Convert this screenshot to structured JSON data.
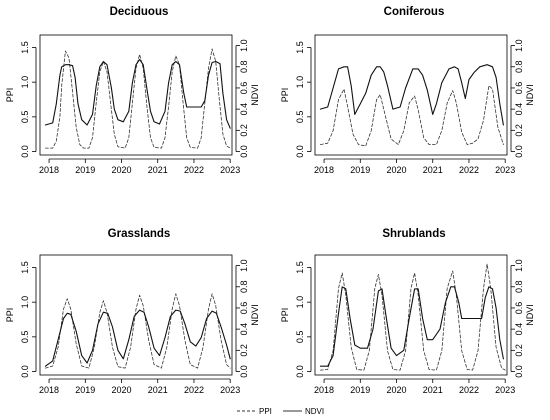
{
  "legend": {
    "ppi_label": "PPI",
    "ndvi_label": "NDVI"
  },
  "chart_data": [
    {
      "type": "line",
      "title": "Deciduous",
      "ylabel_left": "PPI",
      "ylabel_right": "NDVI",
      "xlim": [
        2017.75,
        2023.05
      ],
      "ylim_left": [
        -0.05,
        1.68
      ],
      "ylim_right": [
        -0.033,
        1.1
      ],
      "x_ticks": [
        2018,
        2019,
        2020,
        2021,
        2022,
        2023
      ],
      "y_ticks_left": [
        "0.0",
        "0.5",
        "1.0",
        "1.5"
      ],
      "y_ticks_right": [
        "0.0",
        "0.2",
        "0.4",
        "0.6",
        "0.8",
        "1.0"
      ],
      "series": [
        {
          "name": "PPI",
          "axis": "left",
          "style": "dashed",
          "x": [
            2017.9,
            2018.1,
            2018.2,
            2018.3,
            2018.35,
            2018.45,
            2018.55,
            2018.65,
            2018.75,
            2018.85,
            2018.95,
            2019.1,
            2019.2,
            2019.3,
            2019.4,
            2019.5,
            2019.6,
            2019.7,
            2019.8,
            2019.9,
            2020.1,
            2020.2,
            2020.3,
            2020.4,
            2020.5,
            2020.6,
            2020.7,
            2020.8,
            2020.9,
            2021.1,
            2021.2,
            2021.3,
            2021.4,
            2021.5,
            2021.6,
            2021.7,
            2021.8,
            2021.9,
            2022.1,
            2022.2,
            2022.3,
            2022.4,
            2022.5,
            2022.6,
            2022.7,
            2022.8,
            2022.9,
            2023.0
          ],
          "y": [
            0.05,
            0.05,
            0.15,
            0.5,
            0.95,
            1.45,
            1.35,
            0.85,
            0.35,
            0.1,
            0.05,
            0.05,
            0.2,
            0.7,
            1.15,
            1.3,
            1.15,
            0.7,
            0.25,
            0.07,
            0.05,
            0.2,
            0.7,
            1.2,
            1.4,
            1.2,
            0.65,
            0.2,
            0.06,
            0.05,
            0.2,
            0.65,
            1.15,
            1.38,
            1.25,
            0.7,
            0.2,
            0.06,
            0.05,
            0.2,
            0.7,
            1.2,
            1.48,
            1.3,
            0.75,
            0.25,
            0.08,
            0.05
          ]
        },
        {
          "name": "NDVI",
          "axis": "right",
          "style": "solid",
          "x": [
            2017.9,
            2018.1,
            2018.2,
            2018.3,
            2018.35,
            2018.45,
            2018.55,
            2018.65,
            2018.72,
            2018.8,
            2018.9,
            2019.05,
            2019.2,
            2019.3,
            2019.4,
            2019.5,
            2019.6,
            2019.72,
            2019.8,
            2019.9,
            2020.05,
            2020.2,
            2020.3,
            2020.4,
            2020.5,
            2020.6,
            2020.72,
            2020.8,
            2020.9,
            2021.05,
            2021.2,
            2021.3,
            2021.4,
            2021.5,
            2021.6,
            2021.72,
            2021.8,
            2021.9,
            2022.05,
            2022.2,
            2022.3,
            2022.4,
            2022.5,
            2022.6,
            2022.72,
            2022.8,
            2022.9,
            2023.0
          ],
          "y": [
            0.25,
            0.27,
            0.45,
            0.72,
            0.8,
            0.82,
            0.82,
            0.81,
            0.7,
            0.45,
            0.3,
            0.25,
            0.35,
            0.62,
            0.8,
            0.85,
            0.82,
            0.6,
            0.4,
            0.3,
            0.28,
            0.38,
            0.65,
            0.82,
            0.87,
            0.82,
            0.55,
            0.38,
            0.28,
            0.26,
            0.38,
            0.65,
            0.82,
            0.85,
            0.82,
            0.55,
            0.42,
            0.42,
            0.42,
            0.42,
            0.48,
            0.72,
            0.84,
            0.85,
            0.83,
            0.55,
            0.3,
            0.22
          ]
        }
      ]
    },
    {
      "type": "line",
      "title": "Coniferous",
      "ylabel_left": "PPI",
      "ylabel_right": "NDVI",
      "xlim": [
        2017.75,
        2023.05
      ],
      "ylim_left": [
        -0.05,
        1.68
      ],
      "ylim_right": [
        -0.033,
        1.1
      ],
      "x_ticks": [
        2018,
        2019,
        2020,
        2021,
        2022,
        2023
      ],
      "y_ticks_left": [
        "0.0",
        "0.5",
        "1.0",
        "1.5"
      ],
      "y_ticks_right": [
        "0.0",
        "0.2",
        "0.4",
        "0.6",
        "0.8",
        "1.0"
      ],
      "series": [
        {
          "name": "PPI",
          "axis": "left",
          "style": "dashed",
          "x": [
            2017.9,
            2018.1,
            2018.25,
            2018.4,
            2018.55,
            2018.65,
            2018.8,
            2018.95,
            2019.15,
            2019.3,
            2019.45,
            2019.55,
            2019.7,
            2019.85,
            2020.05,
            2020.2,
            2020.35,
            2020.5,
            2020.6,
            2020.75,
            2020.9,
            2021.1,
            2021.25,
            2021.4,
            2021.55,
            2021.65,
            2021.8,
            2021.95,
            2022.1,
            2022.25,
            2022.4,
            2022.55,
            2022.65,
            2022.8,
            2022.95
          ],
          "y": [
            0.1,
            0.12,
            0.3,
            0.75,
            0.9,
            0.65,
            0.25,
            0.1,
            0.08,
            0.3,
            0.75,
            0.82,
            0.5,
            0.18,
            0.1,
            0.3,
            0.7,
            0.8,
            0.6,
            0.2,
            0.1,
            0.1,
            0.3,
            0.7,
            0.88,
            0.7,
            0.28,
            0.1,
            0.12,
            0.18,
            0.45,
            0.95,
            0.9,
            0.35,
            0.1
          ]
        },
        {
          "name": "NDVI",
          "axis": "right",
          "style": "solid",
          "x": [
            2017.9,
            2018.1,
            2018.25,
            2018.4,
            2018.55,
            2018.65,
            2018.75,
            2018.85,
            2019.0,
            2019.15,
            2019.3,
            2019.45,
            2019.55,
            2019.65,
            2019.75,
            2019.9,
            2020.1,
            2020.25,
            2020.45,
            2020.6,
            2020.72,
            2020.85,
            2021.0,
            2021.1,
            2021.25,
            2021.45,
            2021.6,
            2021.7,
            2021.8,
            2021.9,
            2022.0,
            2022.15,
            2022.3,
            2022.5,
            2022.65,
            2022.75,
            2022.85,
            2022.95
          ],
          "y": [
            0.4,
            0.42,
            0.6,
            0.78,
            0.8,
            0.8,
            0.62,
            0.35,
            0.45,
            0.55,
            0.72,
            0.8,
            0.8,
            0.75,
            0.62,
            0.4,
            0.42,
            0.6,
            0.78,
            0.78,
            0.72,
            0.58,
            0.35,
            0.45,
            0.65,
            0.78,
            0.8,
            0.78,
            0.65,
            0.5,
            0.68,
            0.75,
            0.8,
            0.82,
            0.8,
            0.7,
            0.45,
            0.25
          ]
        }
      ]
    },
    {
      "type": "line",
      "title": "Grasslands",
      "ylabel_left": "PPI",
      "ylabel_right": "NDVI",
      "xlim": [
        2017.75,
        2023.05
      ],
      "ylim_left": [
        -0.05,
        1.68
      ],
      "ylim_right": [
        -0.033,
        1.1
      ],
      "x_ticks": [
        2018,
        2019,
        2020,
        2021,
        2022,
        2023
      ],
      "y_ticks_left": [
        "0.0",
        "0.5",
        "1.0",
        "1.5"
      ],
      "y_ticks_right": [
        "0.0",
        "0.2",
        "0.4",
        "0.6",
        "0.8",
        "1.0"
      ],
      "series": [
        {
          "name": "PPI",
          "axis": "left",
          "style": "dashed",
          "x": [
            2017.9,
            2018.1,
            2018.25,
            2018.4,
            2018.5,
            2018.6,
            2018.75,
            2018.9,
            2019.1,
            2019.25,
            2019.4,
            2019.5,
            2019.6,
            2019.75,
            2019.9,
            2020.1,
            2020.25,
            2020.4,
            2020.5,
            2020.6,
            2020.75,
            2020.9,
            2021.1,
            2021.25,
            2021.4,
            2021.5,
            2021.6,
            2021.75,
            2021.9,
            2022.1,
            2022.25,
            2022.4,
            2022.5,
            2022.6,
            2022.75,
            2022.9,
            2023.0
          ],
          "y": [
            0.05,
            0.08,
            0.35,
            0.9,
            1.05,
            0.9,
            0.4,
            0.08,
            0.05,
            0.35,
            0.85,
            1.02,
            0.85,
            0.35,
            0.07,
            0.05,
            0.35,
            0.9,
            1.1,
            0.95,
            0.45,
            0.1,
            0.05,
            0.35,
            0.9,
            1.12,
            0.95,
            0.45,
            0.1,
            0.05,
            0.35,
            0.9,
            1.12,
            0.95,
            0.45,
            0.1,
            0.05
          ]
        },
        {
          "name": "NDVI",
          "axis": "right",
          "style": "solid",
          "x": [
            2017.9,
            2018.1,
            2018.25,
            2018.4,
            2018.5,
            2018.6,
            2018.75,
            2018.9,
            2019.05,
            2019.2,
            2019.35,
            2019.5,
            2019.62,
            2019.75,
            2019.9,
            2020.05,
            2020.2,
            2020.35,
            2020.5,
            2020.62,
            2020.75,
            2020.9,
            2021.05,
            2021.2,
            2021.35,
            2021.5,
            2021.62,
            2021.75,
            2021.9,
            2022.05,
            2022.2,
            2022.35,
            2022.5,
            2022.62,
            2022.75,
            2022.9,
            2023.0
          ],
          "y": [
            0.05,
            0.1,
            0.3,
            0.5,
            0.55,
            0.54,
            0.38,
            0.15,
            0.08,
            0.2,
            0.45,
            0.56,
            0.55,
            0.42,
            0.2,
            0.12,
            0.3,
            0.52,
            0.58,
            0.56,
            0.42,
            0.22,
            0.15,
            0.32,
            0.52,
            0.58,
            0.57,
            0.45,
            0.28,
            0.24,
            0.32,
            0.5,
            0.57,
            0.55,
            0.42,
            0.25,
            0.12
          ]
        }
      ]
    },
    {
      "type": "line",
      "title": "Shrublands",
      "ylabel_left": "PPI",
      "ylabel_right": "NDVI",
      "xlim": [
        2017.75,
        2023.05
      ],
      "ylim_left": [
        -0.05,
        1.68
      ],
      "ylim_right": [
        -0.033,
        1.1
      ],
      "x_ticks": [
        2018,
        2019,
        2020,
        2021,
        2022,
        2023
      ],
      "y_ticks_left": [
        "0.0",
        "0.5",
        "1.0",
        "1.5"
      ],
      "y_ticks_right": [
        "0.0",
        "0.2",
        "0.4",
        "0.6",
        "0.8",
        "1.0"
      ],
      "series": [
        {
          "name": "PPI",
          "axis": "left",
          "style": "dashed",
          "x": [
            2017.9,
            2018.1,
            2018.25,
            2018.4,
            2018.5,
            2018.6,
            2018.75,
            2018.9,
            2019.1,
            2019.25,
            2019.4,
            2019.5,
            2019.6,
            2019.75,
            2019.9,
            2020.1,
            2020.25,
            2020.4,
            2020.5,
            2020.6,
            2020.75,
            2020.9,
            2021.1,
            2021.25,
            2021.4,
            2021.55,
            2021.65,
            2021.8,
            2021.95,
            2022.1,
            2022.25,
            2022.4,
            2022.5,
            2022.6,
            2022.75,
            2022.9,
            2023.0
          ],
          "y": [
            0.02,
            0.03,
            0.3,
            1.2,
            1.42,
            1.1,
            0.35,
            0.03,
            0.02,
            0.3,
            1.2,
            1.4,
            1.1,
            0.3,
            0.03,
            0.02,
            0.3,
            1.2,
            1.42,
            1.1,
            0.3,
            0.03,
            0.02,
            0.3,
            1.2,
            1.45,
            1.1,
            0.3,
            0.03,
            0.02,
            0.3,
            1.2,
            1.55,
            1.2,
            0.35,
            0.05,
            0.02
          ]
        },
        {
          "name": "NDVI",
          "axis": "right",
          "style": "solid",
          "x": [
            2017.9,
            2018.1,
            2018.25,
            2018.4,
            2018.5,
            2018.6,
            2018.72,
            2018.85,
            2019.0,
            2019.2,
            2019.35,
            2019.5,
            2019.6,
            2019.72,
            2019.85,
            2020.0,
            2020.2,
            2020.35,
            2020.5,
            2020.6,
            2020.72,
            2020.85,
            2021.0,
            2021.2,
            2021.35,
            2021.5,
            2021.6,
            2021.72,
            2021.8,
            2021.9,
            2022.2,
            2022.35,
            2022.45,
            2022.55,
            2022.65,
            2022.75,
            2022.85,
            2022.95
          ],
          "y": [
            0.05,
            0.05,
            0.15,
            0.55,
            0.8,
            0.78,
            0.5,
            0.25,
            0.22,
            0.22,
            0.4,
            0.76,
            0.78,
            0.5,
            0.22,
            0.15,
            0.2,
            0.5,
            0.78,
            0.78,
            0.5,
            0.3,
            0.3,
            0.4,
            0.65,
            0.8,
            0.8,
            0.65,
            0.5,
            0.5,
            0.5,
            0.5,
            0.7,
            0.8,
            0.78,
            0.6,
            0.3,
            0.12
          ]
        }
      ]
    }
  ]
}
